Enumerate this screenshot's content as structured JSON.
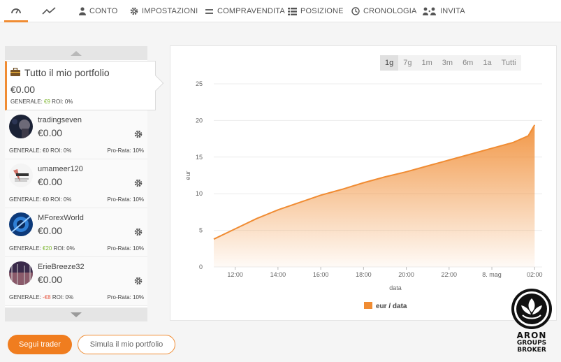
{
  "nav": {
    "items": [
      {
        "label": "",
        "icon": "dashboard-icon"
      },
      {
        "label": "",
        "icon": "chart-line-icon"
      },
      {
        "label": "CONTO",
        "icon": "user-icon"
      },
      {
        "label": "IMPOSTAZIONI",
        "icon": "gear-icon"
      },
      {
        "label": "COMPRAVENDITA",
        "icon": "transfer-icon"
      },
      {
        "label": "POSIZIONE",
        "icon": "list-icon"
      },
      {
        "label": "CRONOLOGIA",
        "icon": "clock-icon"
      },
      {
        "label": "INVITA",
        "icon": "add-user-icon"
      }
    ],
    "active_index": 0
  },
  "portfolio": {
    "title": "Tutto il mio portfolio",
    "value": "€0.00",
    "generale_label": "GENERALE:",
    "generale_value": "€9",
    "roi": "ROI: 0%"
  },
  "traders": [
    {
      "name": "tradingseven",
      "value": "€0.00",
      "generale_label": "GENERALE:",
      "generale_value": "€0",
      "generale_color": "#444444",
      "roi": "ROI: 0%",
      "prorata": "Pro-Rata: 10%"
    },
    {
      "name": "umameer120",
      "value": "€0.00",
      "generale_label": "GENERALE:",
      "generale_value": "€0",
      "generale_color": "#444444",
      "roi": "ROI: 0%",
      "prorata": "Pro-Rata: 10%"
    },
    {
      "name": "MForexWorld",
      "value": "€0.00",
      "generale_label": "GENERALE:",
      "generale_value": "€20",
      "generale_color": "#7ab42c",
      "roi": "ROI: 0%",
      "prorata": "Pro-Rata: 10%"
    },
    {
      "name": "ErieBreeze32",
      "value": "€0.00",
      "generale_label": "GENERALE:",
      "generale_value": "-€8",
      "generale_color": "#e5533d",
      "roi": "ROI: 0%",
      "prorata": "Pro-Rata: 10%"
    }
  ],
  "range_buttons": [
    "1g",
    "7g",
    "1m",
    "3m",
    "6m",
    "1a",
    "Tutti"
  ],
  "range_active": 0,
  "chart_data": {
    "type": "area",
    "xlabel": "data",
    "ylabel": "eur",
    "ylim": [
      0,
      25
    ],
    "yticks": [
      "0",
      "5",
      "10",
      "15",
      "20",
      "25"
    ],
    "xticks": [
      "12:00",
      "14:00",
      "16:00",
      "18:00",
      "20:00",
      "22:00",
      "8. mag",
      "02:00"
    ],
    "x_start_hours": 11.0,
    "series": [
      {
        "name": "eur / data",
        "color": "#f08c33",
        "x_hours": [
          11.0,
          12.0,
          13.0,
          14.0,
          15.0,
          16.0,
          17.0,
          18.0,
          19.0,
          20.0,
          21.0,
          22.0,
          23.0,
          24.0,
          25.0,
          25.7,
          26.0
        ],
        "values": [
          3.8,
          5.2,
          6.6,
          7.8,
          8.8,
          9.8,
          10.6,
          11.5,
          12.3,
          13.0,
          13.8,
          14.6,
          15.4,
          16.2,
          17.0,
          17.9,
          19.4
        ]
      }
    ],
    "legend": "bottom"
  },
  "buttons": {
    "follow": "Segui trader",
    "simulate": "Simula il mio portfolio"
  },
  "logo": {
    "line1": "ARON",
    "line2": "GROUPS",
    "line3": "BROKER"
  }
}
